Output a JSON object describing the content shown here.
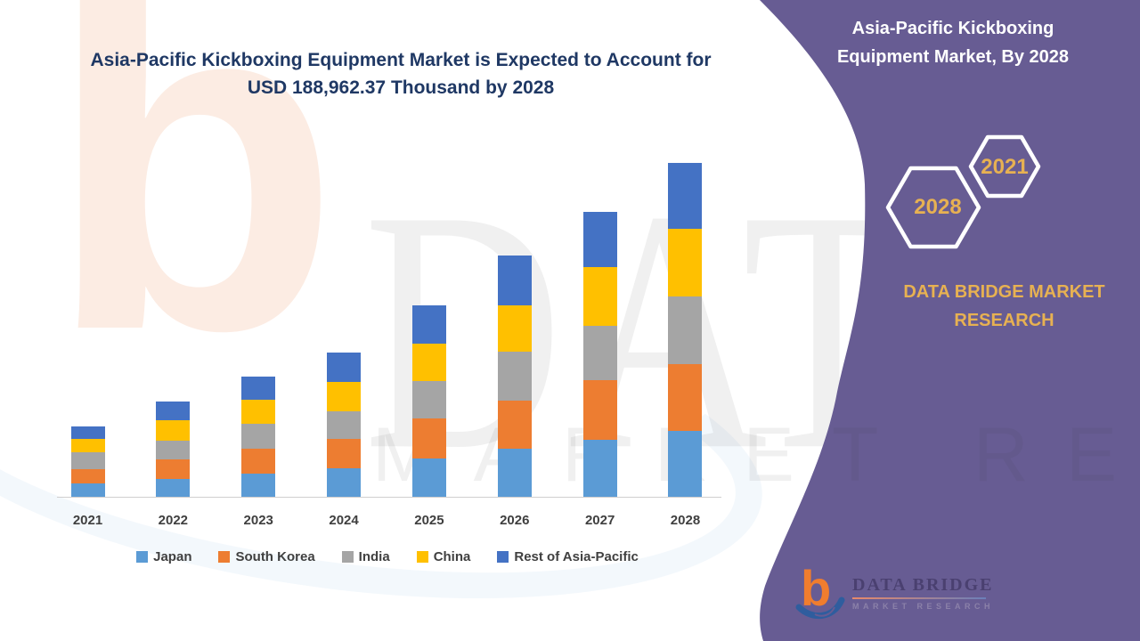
{
  "main_title": {
    "line1": "Asia-Pacific Kickboxing Equipment Market is Expected to Account for",
    "line2": "USD 188,962.37 Thousand by 2028"
  },
  "side_panel": {
    "title": "Asia-Pacific Kickboxing Equipment Market, By 2028",
    "hexagons": [
      {
        "year": "2021"
      },
      {
        "year": "2028"
      }
    ],
    "brand_line": "DATA BRIDGE MARKET RESEARCH",
    "colors": {
      "panel": "#675C93",
      "accent_gold": "#E7B152",
      "hexagon_stroke": "#ffffff"
    }
  },
  "footer_logo": {
    "brand": "DATA BRIDGE",
    "sub": "MARKET RESEARCH",
    "b_icon_color": "#F07D2E",
    "swoosh_color": "#2F5D9E"
  },
  "watermarks": {
    "big_text": "DATA BRI",
    "strip_text": "MARKET RESEARCH",
    "letter_b": "b"
  },
  "chart_data": {
    "type": "bar",
    "stacked": true,
    "title": "Asia-Pacific Kickboxing Equipment Market is Expected to Account for USD 188,962.37 Thousand by 2028",
    "unit": "USD Thousand",
    "categories": [
      "2021",
      "2022",
      "2023",
      "2024",
      "2025",
      "2026",
      "2027",
      "2028"
    ],
    "series": [
      {
        "name": "Japan",
        "color": "#5B9BD5",
        "values": [
          7600,
          10100,
          13300,
          16000,
          21550,
          27000,
          32400,
          37150
        ]
      },
      {
        "name": "South Korea",
        "color": "#ED7D31",
        "values": [
          8100,
          11300,
          14000,
          16550,
          22750,
          27500,
          33400,
          37950
        ]
      },
      {
        "name": "India",
        "color": "#A5A5A5",
        "values": [
          9250,
          10600,
          13800,
          15700,
          21100,
          27500,
          31200,
          38250
        ]
      },
      {
        "name": "China",
        "color": "#FFC000",
        "values": [
          7950,
          11500,
          14000,
          16850,
          21100,
          26100,
          32900,
          38150
        ]
      },
      {
        "name": "Rest of Asia-Pacific",
        "color": "#4472C4",
        "values": [
          7100,
          10400,
          13000,
          16400,
          21900,
          28200,
          31200,
          37462.37
        ]
      }
    ],
    "totals_estimated": [
      40000,
      53900,
      68100,
      81500,
      108400,
      136300,
      161100,
      188962.37
    ],
    "stated_total_2028": 188962.37,
    "legend_position": "bottom",
    "gridlines": false,
    "y_axis_visible": false,
    "x_axis_labels": [
      "2021",
      "2022",
      "2023",
      "2024",
      "2025",
      "2026",
      "2027",
      "2028"
    ]
  }
}
